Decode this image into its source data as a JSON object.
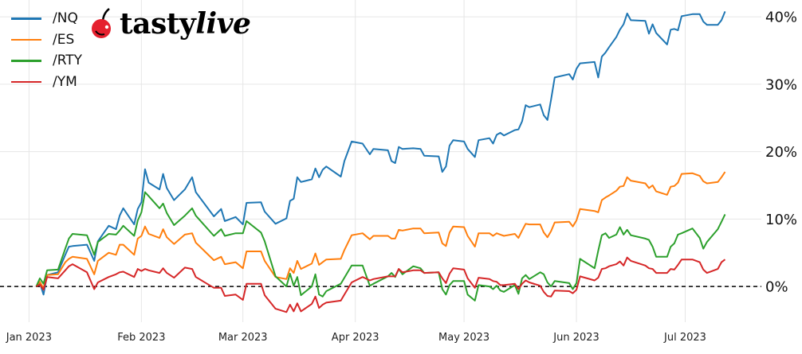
{
  "logo": {
    "text_a": "tasty",
    "text_b": "live",
    "cherry_color": "#e5202e"
  },
  "chart_data": {
    "type": "line",
    "title": "",
    "xlabel": "",
    "ylabel": "",
    "xlim": [
      "2022-12-24",
      "2023-07-22"
    ],
    "ylim": [
      -5.3,
      42.5
    ],
    "grid": true,
    "legend_placement": "top-left",
    "y_axis_side": "right",
    "reference_line": {
      "y": 0,
      "style": "dashed",
      "color": "#000000"
    },
    "x_ticks": [
      {
        "date": "2023-01-01",
        "label": "Jan 2023"
      },
      {
        "date": "2023-02-01",
        "label": "Feb 2023"
      },
      {
        "date": "2023-03-01",
        "label": "Mar 2023"
      },
      {
        "date": "2023-04-01",
        "label": "Apr 2023"
      },
      {
        "date": "2023-05-01",
        "label": "May 2023"
      },
      {
        "date": "2023-06-01",
        "label": "Jun 2023"
      },
      {
        "date": "2023-07-01",
        "label": "Jul 2023"
      }
    ],
    "y_ticks": [
      {
        "value": 0,
        "label": "0%"
      },
      {
        "value": 10,
        "label": "10%"
      },
      {
        "value": 20,
        "label": "20%"
      },
      {
        "value": 30,
        "label": "30%"
      },
      {
        "value": 40,
        "label": "40%"
      }
    ],
    "x": [
      "2023-01-03",
      "2023-01-04",
      "2023-01-05",
      "2023-01-06",
      "2023-01-09",
      "2023-01-11",
      "2023-01-12",
      "2023-01-13",
      "2023-01-17",
      "2023-01-19",
      "2023-01-20",
      "2023-01-23",
      "2023-01-25",
      "2023-01-26",
      "2023-01-27",
      "2023-01-30",
      "2023-01-31",
      "2023-02-01",
      "2023-02-02",
      "2023-02-03",
      "2023-02-06",
      "2023-02-07",
      "2023-02-08",
      "2023-02-10",
      "2023-02-13",
      "2023-02-15",
      "2023-02-16",
      "2023-02-21",
      "2023-02-23",
      "2023-02-24",
      "2023-02-27",
      "2023-03-01",
      "2023-03-02",
      "2023-03-06",
      "2023-03-07",
      "2023-03-10",
      "2023-03-13",
      "2023-03-14",
      "2023-03-15",
      "2023-03-16",
      "2023-03-17",
      "2023-03-20",
      "2023-03-21",
      "2023-03-22",
      "2023-03-23",
      "2023-03-24",
      "2023-03-28",
      "2023-03-29",
      "2023-03-31",
      "2023-04-03",
      "2023-04-05",
      "2023-04-06",
      "2023-04-10",
      "2023-04-11",
      "2023-04-12",
      "2023-04-13",
      "2023-04-14",
      "2023-04-17",
      "2023-04-19",
      "2023-04-20",
      "2023-04-24",
      "2023-04-25",
      "2023-04-26",
      "2023-04-27",
      "2023-04-28",
      "2023-05-01",
      "2023-05-02",
      "2023-05-04",
      "2023-05-05",
      "2023-05-08",
      "2023-05-09",
      "2023-05-10",
      "2023-05-11",
      "2023-05-12",
      "2023-05-15",
      "2023-05-16",
      "2023-05-17",
      "2023-05-18",
      "2023-05-19",
      "2023-05-22",
      "2023-05-23",
      "2023-05-24",
      "2023-05-25",
      "2023-05-26",
      "2023-05-30",
      "2023-05-31",
      "2023-06-01",
      "2023-06-02",
      "2023-06-06",
      "2023-06-07",
      "2023-06-08",
      "2023-06-09",
      "2023-06-10",
      "2023-06-12",
      "2023-06-13",
      "2023-06-14",
      "2023-06-15",
      "2023-06-16",
      "2023-06-20",
      "2023-06-21",
      "2023-06-22",
      "2023-06-23",
      "2023-06-26",
      "2023-06-27",
      "2023-06-28",
      "2023-06-29",
      "2023-06-30",
      "2023-07-03",
      "2023-07-05",
      "2023-07-06",
      "2023-07-07",
      "2023-07-10",
      "2023-07-11",
      "2023-07-12"
    ],
    "series": [
      {
        "name": "/NQ",
        "color": "#1f77b4",
        "values": [
          0,
          0.5,
          -1.2,
          1.7,
          2.1,
          4.7,
          5.9,
          6.0,
          6.2,
          3.8,
          6.7,
          9.0,
          8.5,
          10.5,
          11.6,
          9.2,
          11.5,
          12.5,
          17.4,
          15.4,
          14.4,
          16.7,
          14.6,
          12.8,
          14.4,
          16.2,
          14.0,
          10.4,
          11.5,
          9.7,
          10.3,
          9.2,
          12.4,
          12.5,
          11.1,
          9.3,
          10.1,
          12.7,
          13.0,
          16.2,
          15.5,
          15.9,
          17.5,
          16.2,
          17.3,
          17.8,
          16.3,
          18.6,
          21.5,
          21.2,
          19.6,
          20.4,
          20.2,
          18.6,
          18.3,
          20.7,
          20.4,
          20.5,
          20.4,
          19.4,
          19.3,
          17.0,
          17.8,
          20.9,
          21.7,
          21.5,
          20.4,
          19.2,
          21.7,
          22.0,
          21.2,
          22.5,
          22.8,
          22.4,
          23.2,
          23.3,
          24.5,
          26.9,
          26.6,
          27.0,
          25.4,
          24.7,
          27.7,
          31.0,
          31.5,
          30.7,
          32.3,
          33.1,
          33.3,
          31.0,
          34.1,
          34.7,
          35.5,
          37.0,
          38.1,
          38.9,
          40.5,
          39.5,
          39.4,
          37.5,
          38.9,
          37.6,
          35.9,
          38.1,
          38.2,
          38.0,
          40.1,
          40.4,
          40.4,
          39.3,
          38.8,
          38.8,
          39.5,
          40.8
        ]
      },
      {
        "name": "/ES",
        "color": "#ff7f0e",
        "values": [
          0,
          0.7,
          -0.3,
          1.7,
          1.8,
          3.6,
          4.1,
          4.4,
          4.1,
          1.8,
          3.8,
          5.0,
          4.7,
          6.2,
          6.2,
          4.7,
          7.1,
          7.5,
          8.9,
          7.8,
          7.2,
          8.5,
          7.3,
          6.3,
          7.7,
          7.9,
          6.5,
          3.9,
          4.4,
          3.3,
          3.6,
          2.7,
          5.2,
          5.2,
          3.8,
          1.4,
          1.1,
          2.7,
          2.0,
          3.8,
          2.6,
          3.4,
          4.9,
          3.2,
          3.6,
          4.0,
          4.1,
          5.4,
          7.6,
          7.9,
          7.0,
          7.5,
          7.5,
          7.1,
          7.1,
          8.4,
          8.3,
          8.6,
          8.6,
          7.9,
          8.0,
          6.4,
          6.0,
          8.0,
          8.9,
          8.8,
          7.5,
          5.9,
          7.9,
          7.9,
          7.5,
          7.9,
          7.7,
          7.5,
          7.8,
          7.2,
          8.3,
          9.3,
          9.2,
          9.2,
          8.0,
          7.3,
          8.2,
          9.5,
          9.6,
          8.9,
          9.8,
          11.5,
          11.2,
          11.0,
          12.8,
          13.2,
          13.5,
          14.2,
          14.8,
          14.9,
          16.2,
          15.7,
          15.3,
          14.6,
          15.0,
          14.1,
          13.6,
          14.8,
          14.9,
          15.4,
          16.7,
          16.8,
          16.4,
          15.6,
          15.3,
          15.5,
          16.2,
          17.0
        ]
      },
      {
        "name": "/RTY",
        "color": "#2ca02c",
        "values": [
          0,
          1.2,
          0.4,
          2.4,
          2.5,
          5.6,
          7.1,
          7.8,
          7.6,
          4.7,
          6.6,
          7.8,
          7.7,
          8.3,
          9.0,
          7.5,
          9.8,
          11.0,
          14.0,
          13.4,
          11.6,
          12.3,
          10.9,
          9.1,
          10.5,
          11.6,
          10.5,
          7.5,
          8.5,
          7.5,
          7.9,
          7.9,
          9.7,
          8.0,
          6.7,
          1.5,
          0,
          1.9,
          0.1,
          1.4,
          -1.3,
          0,
          1.8,
          -1.2,
          -1.5,
          -0.7,
          0.4,
          1.3,
          3.1,
          3.1,
          0.1,
          0.4,
          1.5,
          2.0,
          1.4,
          2.6,
          1.8,
          3.0,
          2.7,
          2.0,
          2.1,
          -0.4,
          -1.2,
          0.2,
          0.8,
          0.8,
          -1.2,
          -2.1,
          0.2,
          0,
          -0.4,
          0.1,
          -0.6,
          -0.8,
          0.2,
          -1.1,
          1.2,
          1.7,
          1.1,
          2.1,
          1.8,
          0.6,
          0,
          0.8,
          0.5,
          -0.4,
          0.5,
          4.1,
          2.7,
          5.3,
          7.6,
          7.9,
          7.2,
          7.7,
          8.8,
          7.7,
          8.4,
          7.6,
          7.1,
          6.9,
          5.9,
          4.4,
          4.4,
          5.9,
          6.4,
          7.7,
          7.9,
          8.6,
          7.2,
          5.6,
          6.6,
          8.5,
          9.6,
          10.7
        ]
      },
      {
        "name": "/YM",
        "color": "#d62728",
        "values": [
          0,
          0.3,
          -0.5,
          1.4,
          1.2,
          2.4,
          3.0,
          3.3,
          2.1,
          -0.4,
          0.6,
          1.4,
          1.8,
          2.1,
          2.2,
          1.4,
          2.6,
          2.3,
          2.6,
          2.4,
          2.0,
          2.7,
          2.0,
          1.3,
          2.8,
          2.6,
          1.4,
          -0.2,
          -0.2,
          -1.4,
          -1.2,
          -2.0,
          0.4,
          0.4,
          -1.3,
          -3.3,
          -3.8,
          -2.7,
          -3.7,
          -2.5,
          -3.7,
          -2.6,
          -1.5,
          -3.2,
          -2.7,
          -2.4,
          -2.1,
          -1.2,
          0.6,
          1.4,
          0.9,
          1.1,
          1.5,
          1.5,
          1.5,
          2.6,
          2.1,
          2.4,
          2.4,
          2.0,
          2.1,
          1.2,
          0.5,
          1.9,
          2.7,
          2.5,
          1.2,
          -0.2,
          1.3,
          1.1,
          0.8,
          0.7,
          0.2,
          0.2,
          0.4,
          -0.4,
          0.4,
          0.9,
          0.6,
          0.1,
          -0.8,
          -1.4,
          -1.5,
          -0.6,
          -0.7,
          -1.0,
          -0.5,
          1.5,
          0.9,
          1.3,
          2.6,
          2.7,
          3.0,
          3.3,
          3.7,
          3.1,
          4.3,
          3.8,
          3.1,
          2.7,
          2.6,
          2.0,
          2.0,
          2.6,
          2.5,
          3.2,
          4.0,
          4.0,
          3.6,
          2.5,
          2.0,
          2.6,
          3.6,
          4.0
        ]
      }
    ]
  }
}
